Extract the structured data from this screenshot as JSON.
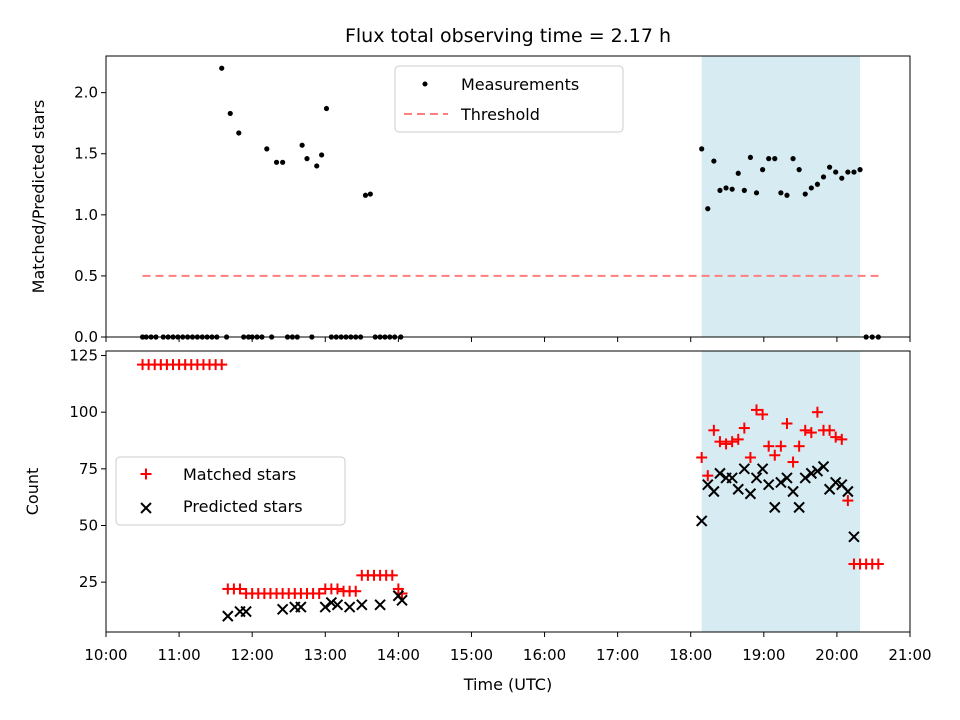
{
  "chart_data": [
    {
      "type": "scatter",
      "title": "Flux total observing time = 2.17 h",
      "xlabel": "",
      "ylabel": "Matched/Predicted stars",
      "xlim": [
        "10:00",
        "21:00"
      ],
      "ylim": [
        0,
        2.3
      ],
      "yticks": [
        "0.0",
        "0.5",
        "1.0",
        "1.5",
        "2.0"
      ],
      "legend": {
        "placement": "top-center",
        "entries": [
          "Measurements",
          "Threshold"
        ]
      },
      "highlight_span": [
        "18:09",
        "20:19"
      ],
      "colors": {
        "measurements": "#000000",
        "threshold": "#ff7f7f",
        "span": "#add8e6"
      },
      "threshold": {
        "value": 0.5,
        "x": [
          "10:30",
          "20:35"
        ]
      },
      "series": [
        {
          "name": "Measurements",
          "x": [
            "10:30",
            "10:33",
            "10:37",
            "10:41",
            "10:47",
            "10:51",
            "10:55",
            "10:59",
            "11:03",
            "11:07",
            "11:11",
            "11:15",
            "11:19",
            "11:23",
            "11:27",
            "11:31",
            "11:35",
            "11:39",
            "11:42",
            "11:49",
            "11:53",
            "11:57",
            "12:00",
            "12:04",
            "12:08",
            "12:12",
            "12:16",
            "12:20",
            "12:25",
            "12:29",
            "12:33",
            "12:37",
            "12:41",
            "12:45",
            "12:49",
            "12:53",
            "12:57",
            "13:01",
            "13:05",
            "13:09",
            "13:13",
            "13:17",
            "13:21",
            "13:25",
            "13:29",
            "13:33",
            "13:37",
            "13:41",
            "13:45",
            "13:49",
            "13:53",
            "13:57",
            "14:02",
            "18:09",
            "18:14",
            "18:19",
            "18:24",
            "18:29",
            "18:34",
            "18:39",
            "18:44",
            "18:49",
            "18:54",
            "18:59",
            "19:04",
            "19:09",
            "19:14",
            "19:19",
            "19:24",
            "19:29",
            "19:34",
            "19:39",
            "19:44",
            "19:49",
            "19:54",
            "19:59",
            "20:04",
            "20:09",
            "20:14",
            "20:19",
            "20:24",
            "20:29",
            "20:34"
          ],
          "y": [
            0,
            0,
            0,
            0,
            0,
            0,
            0,
            0,
            0,
            0,
            0,
            0,
            0,
            0,
            0,
            0,
            2.2,
            0,
            1.83,
            1.67,
            0,
            0,
            0,
            0,
            0,
            1.54,
            0,
            1.43,
            1.43,
            0,
            0,
            0,
            1.57,
            1.46,
            0,
            1.4,
            1.49,
            1.87,
            0,
            0,
            0,
            0,
            0,
            0,
            0,
            1.16,
            1.17,
            0,
            0,
            0,
            0,
            0,
            0,
            1.54,
            1.05,
            1.44,
            1.2,
            1.22,
            1.21,
            1.34,
            1.2,
            1.47,
            1.18,
            1.37,
            1.46,
            1.46,
            1.18,
            1.16,
            1.46,
            1.37,
            1.17,
            1.22,
            1.25,
            1.31,
            1.39,
            1.35,
            1.3,
            1.35,
            1.35,
            1.37,
            0,
            0,
            0
          ]
        }
      ]
    },
    {
      "type": "scatter",
      "title": "",
      "xlabel": "Time (UTC)",
      "ylabel": "Count",
      "xlim": [
        "10:00",
        "21:00"
      ],
      "ylim": [
        3,
        127
      ],
      "yticks": [
        "25",
        "50",
        "75",
        "100",
        "125"
      ],
      "xticks": [
        "10:00",
        "11:00",
        "12:00",
        "13:00",
        "14:00",
        "15:00",
        "16:00",
        "17:00",
        "18:00",
        "19:00",
        "20:00",
        "21:00"
      ],
      "legend": {
        "placement": "center-left",
        "entries": [
          "Matched stars",
          "Predicted stars"
        ]
      },
      "highlight_span": [
        "18:09",
        "20:19"
      ],
      "colors": {
        "matched": "#ff0000",
        "predicted": "#000000",
        "span": "#add8e6"
      },
      "series": [
        {
          "name": "Matched stars",
          "x": [
            "10:30",
            "10:35",
            "10:40",
            "10:45",
            "10:50",
            "10:55",
            "11:00",
            "11:05",
            "11:10",
            "11:15",
            "11:20",
            "11:25",
            "11:30",
            "11:35",
            "11:40",
            "11:45",
            "11:50",
            "11:55",
            "12:00",
            "12:05",
            "12:10",
            "12:15",
            "12:20",
            "12:25",
            "12:30",
            "12:35",
            "12:40",
            "12:45",
            "12:50",
            "12:55",
            "13:00",
            "13:05",
            "13:10",
            "13:15",
            "13:20",
            "13:25",
            "13:30",
            "13:35",
            "13:40",
            "13:45",
            "13:50",
            "13:55",
            "14:00",
            "14:03",
            "18:09",
            "18:14",
            "18:19",
            "18:24",
            "18:29",
            "18:34",
            "18:39",
            "18:44",
            "18:49",
            "18:54",
            "18:59",
            "19:04",
            "19:09",
            "19:14",
            "19:19",
            "19:24",
            "19:29",
            "19:34",
            "19:39",
            "19:44",
            "19:49",
            "19:54",
            "19:59",
            "20:04",
            "20:09",
            "20:14",
            "20:19",
            "20:24",
            "20:29",
            "20:34"
          ],
          "y": [
            121,
            121,
            121,
            121,
            121,
            121,
            121,
            121,
            121,
            121,
            121,
            121,
            121,
            121,
            22,
            22,
            22,
            20,
            20,
            20,
            20,
            20,
            20,
            20,
            20,
            20,
            20,
            20,
            20,
            20,
            22,
            22,
            22,
            21,
            21,
            21,
            28,
            28,
            28,
            28,
            28,
            28,
            22,
            20,
            80,
            72,
            92,
            87,
            86,
            87,
            88,
            93,
            80,
            101,
            99,
            85,
            81,
            85,
            95,
            78,
            85,
            92,
            91,
            100,
            92,
            92,
            89,
            88,
            61,
            33,
            33,
            33,
            33,
            33
          ]
        },
        {
          "name": "Predicted stars",
          "x": [
            "11:40",
            "11:50",
            "11:55",
            "12:25",
            "12:35",
            "12:40",
            "13:00",
            "13:05",
            "13:10",
            "13:20",
            "13:30",
            "13:45",
            "14:00",
            "14:03",
            "18:09",
            "18:14",
            "18:19",
            "18:24",
            "18:29",
            "18:34",
            "18:39",
            "18:44",
            "18:49",
            "18:54",
            "18:59",
            "19:04",
            "19:09",
            "19:14",
            "19:19",
            "19:24",
            "19:29",
            "19:34",
            "19:39",
            "19:44",
            "19:49",
            "19:54",
            "19:59",
            "20:04",
            "20:09",
            "20:14"
          ],
          "y": [
            10,
            12,
            12,
            13,
            14,
            14,
            14,
            16,
            15,
            14,
            15,
            15,
            19,
            17,
            52,
            68,
            65,
            73,
            71,
            71,
            66,
            75,
            64,
            71,
            75,
            68,
            58,
            69,
            71,
            65,
            58,
            71,
            73,
            74,
            76,
            66,
            69,
            68,
            65,
            45
          ]
        }
      ]
    }
  ]
}
